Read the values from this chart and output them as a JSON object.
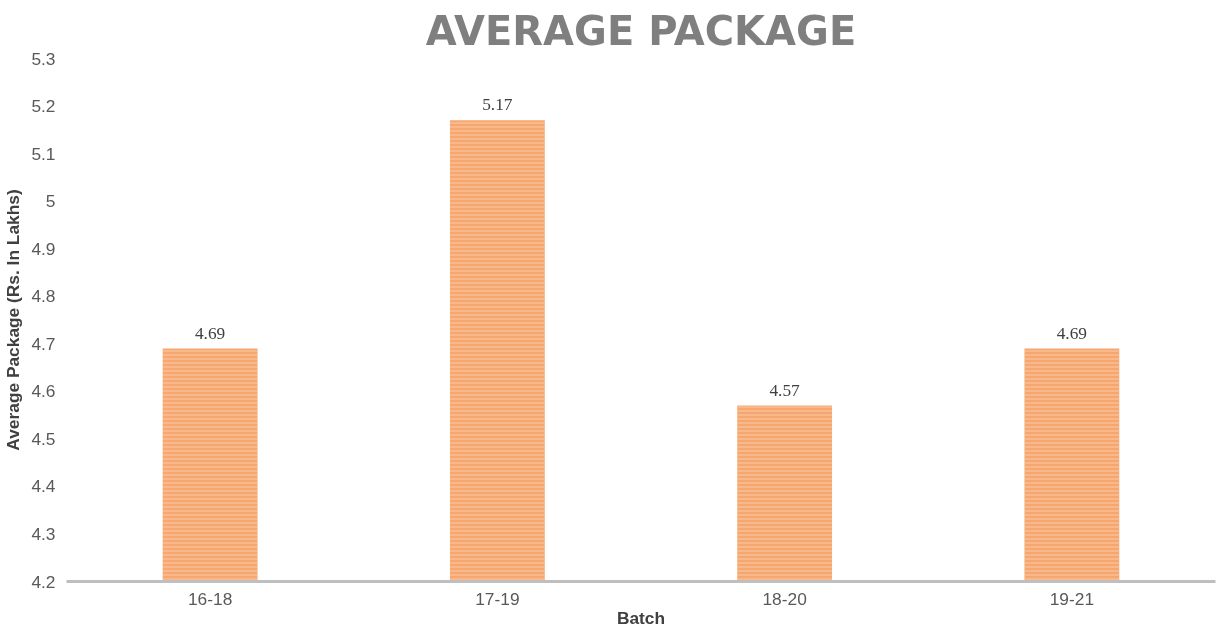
{
  "chart_data": {
    "type": "bar",
    "title": "AVERAGE PACKAGE",
    "xlabel": "Batch",
    "ylabel": "Average Package (Rs. In Lakhs)",
    "categories": [
      "16-18",
      "17-19",
      "18-20",
      "19-21"
    ],
    "values": [
      4.69,
      5.17,
      4.57,
      4.69
    ],
    "color": "#f6a66e",
    "ylim": [
      4.2,
      5.3
    ],
    "yticks": [
      4.2,
      4.3,
      4.4,
      4.5,
      4.6,
      4.7,
      4.8,
      4.9,
      5,
      5.1,
      5.2,
      5.3
    ],
    "grid": false,
    "data_labels": true
  }
}
